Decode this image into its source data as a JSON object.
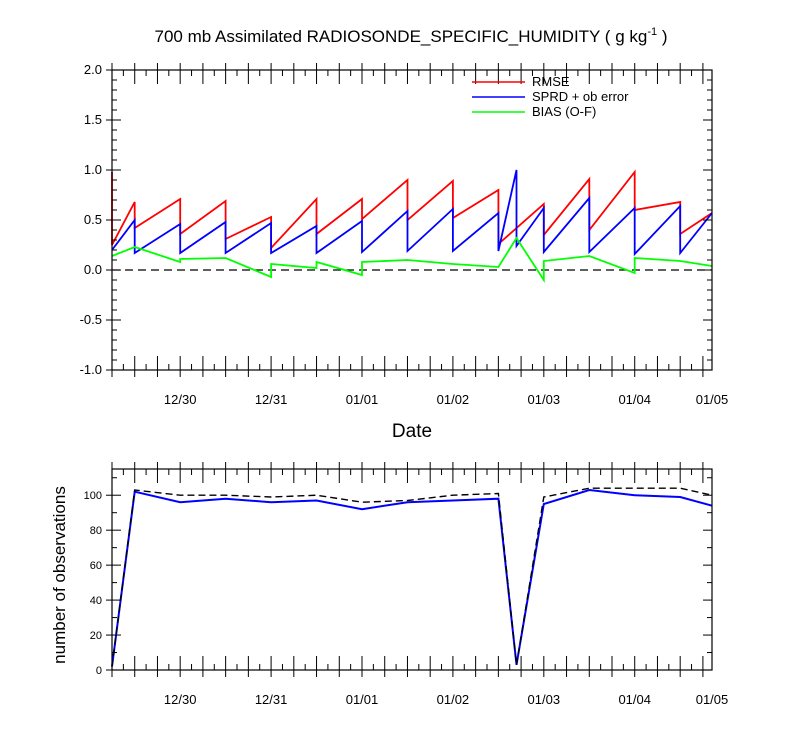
{
  "chart_data": [
    {
      "type": "line",
      "title": "700 mb Assimilated RADIOSONDE_SPECIFIC_HUMIDITY ( g kg",
      "title_exp": "-1",
      "title_end": " )",
      "xlabel": "Date",
      "ylabel": "",
      "xlim": [
        0,
        13.2
      ],
      "ylim": [
        -1.0,
        2.0
      ],
      "yticks": [
        "-1.0",
        "-0.5",
        "0.0",
        "0.5",
        "1.0",
        "1.5",
        "2.0"
      ],
      "xtick_labels": [
        {
          "x": 1.5,
          "label": "12/30"
        },
        {
          "x": 3.5,
          "label": "12/31"
        },
        {
          "x": 5.5,
          "label": "01/01"
        },
        {
          "x": 7.5,
          "label": "01/02"
        },
        {
          "x": 9.5,
          "label": "01/03"
        },
        {
          "x": 11.5,
          "label": "01/04"
        },
        {
          "x": 13.2,
          "label": "01/05"
        }
      ],
      "zero_line": true,
      "legend": [
        "RMSE",
        "SPRD + ob error",
        "BIAS (O-F)"
      ],
      "colors": {
        "rmse": "#ff0000",
        "sprd": "#0000ff",
        "bias": "#00ff00",
        "zero": "#000000"
      },
      "series": [
        {
          "name": "RMSE",
          "color": "#ff0000",
          "x": [
            0,
            0,
            0.5,
            0.5,
            1.5,
            1.5,
            2.5,
            2.5,
            3.5,
            3.5,
            4.5,
            4.5,
            5.5,
            5.5,
            6.5,
            6.5,
            7.5,
            7.5,
            8.5,
            8.5,
            9.5,
            9.5,
            10.5,
            10.5,
            11.5,
            11.5,
            12.5,
            12.5,
            13.2
          ],
          "y": [
            0.98,
            0.25,
            0.68,
            0.42,
            0.71,
            0.36,
            0.69,
            0.31,
            0.53,
            0.22,
            0.71,
            0.36,
            0.71,
            0.51,
            0.9,
            0.5,
            0.89,
            0.52,
            0.8,
            0.26,
            0.66,
            0.35,
            0.91,
            0.4,
            0.98,
            0.6,
            0.68,
            0.36,
            0.57
          ]
        },
        {
          "name": "SPRD + ob error",
          "color": "#0000ff",
          "x": [
            0,
            0.5,
            0.5,
            1.5,
            1.5,
            2.5,
            2.5,
            3.5,
            3.5,
            4.5,
            4.5,
            5.5,
            5.5,
            6.5,
            6.5,
            7.5,
            7.5,
            8.5,
            8.5,
            8.9,
            8.9,
            9.5,
            9.5,
            10.5,
            10.5,
            11.5,
            11.5,
            12.5,
            12.5,
            13.2
          ],
          "y": [
            0.2,
            0.5,
            0.17,
            0.46,
            0.17,
            0.48,
            0.17,
            0.47,
            0.17,
            0.44,
            0.17,
            0.49,
            0.18,
            0.59,
            0.19,
            0.61,
            0.19,
            0.57,
            0.19,
            1.0,
            0.24,
            0.62,
            0.18,
            0.72,
            0.18,
            0.62,
            0.16,
            0.64,
            0.17,
            0.57
          ]
        },
        {
          "name": "BIAS (O-F)",
          "color": "#00ff00",
          "x": [
            0,
            0.5,
            1.5,
            1.5,
            2.5,
            3.5,
            3.5,
            4.5,
            4.5,
            5.5,
            5.5,
            6.5,
            7.5,
            8.5,
            8.9,
            9.5,
            9.5,
            10.5,
            11.5,
            11.5,
            12.5,
            13.2
          ],
          "y": [
            0.14,
            0.23,
            0.08,
            0.11,
            0.12,
            -0.07,
            0.06,
            0.02,
            0.08,
            -0.05,
            0.08,
            0.1,
            0.06,
            0.03,
            0.32,
            -0.1,
            0.09,
            0.14,
            -0.03,
            0.12,
            0.09,
            0.04
          ]
        }
      ]
    },
    {
      "type": "line",
      "title": "",
      "xlabel": "",
      "ylabel": "number of observations",
      "xlim": [
        0,
        13.2
      ],
      "ylim": [
        0,
        115
      ],
      "yticks": [
        "0",
        "20",
        "40",
        "60",
        "80",
        "100"
      ],
      "xtick_labels": [
        {
          "x": 1.5,
          "label": "12/30"
        },
        {
          "x": 3.5,
          "label": "12/31"
        },
        {
          "x": 5.5,
          "label": "01/01"
        },
        {
          "x": 7.5,
          "label": "01/02"
        },
        {
          "x": 9.5,
          "label": "01/03"
        },
        {
          "x": 11.5,
          "label": "01/04"
        },
        {
          "x": 13.2,
          "label": "01/05"
        }
      ],
      "colors": {
        "used": "#0000ff",
        "possible": "#000000"
      },
      "series": [
        {
          "name": "observations used",
          "color": "#0000ff",
          "style": "solid",
          "x": [
            0,
            0.5,
            1.5,
            2.5,
            3.5,
            4.5,
            5.5,
            6.5,
            7.5,
            8.5,
            8.9,
            9.5,
            10.5,
            11.5,
            12.5,
            13.2
          ],
          "y": [
            2,
            102,
            96,
            98,
            96,
            97,
            92,
            96,
            97,
            98,
            3,
            95,
            103,
            100,
            99,
            94
          ]
        },
        {
          "name": "observations possible",
          "color": "#000000",
          "style": "dashed",
          "x": [
            0,
            0.5,
            1.5,
            2.5,
            3.5,
            4.5,
            5.5,
            6.5,
            7.5,
            8.5,
            8.9,
            9.5,
            10.5,
            11.5,
            12.5,
            13.2
          ],
          "y": [
            2,
            103,
            100,
            100,
            99,
            100,
            96,
            97,
            100,
            101,
            3,
            99,
            104,
            104,
            104,
            100
          ]
        }
      ]
    }
  ]
}
